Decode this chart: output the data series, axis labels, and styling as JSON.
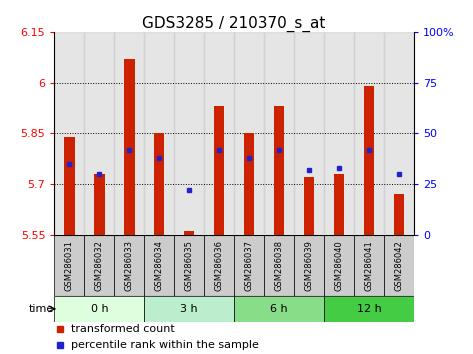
{
  "title": "GDS3285 / 210370_s_at",
  "samples": [
    "GSM286031",
    "GSM286032",
    "GSM286033",
    "GSM286034",
    "GSM286035",
    "GSM286036",
    "GSM286037",
    "GSM286038",
    "GSM286039",
    "GSM286040",
    "GSM286041",
    "GSM286042"
  ],
  "transformed_count": [
    5.84,
    5.73,
    6.07,
    5.85,
    5.56,
    5.93,
    5.85,
    5.93,
    5.72,
    5.73,
    5.99,
    5.67
  ],
  "percentile_rank": [
    35,
    30,
    42,
    38,
    22,
    42,
    38,
    42,
    32,
    33,
    42,
    30
  ],
  "ylim_left": [
    5.55,
    6.15
  ],
  "ylim_right": [
    0,
    100
  ],
  "yticks_left": [
    5.55,
    5.7,
    5.85,
    6.0,
    6.15
  ],
  "yticks_right": [
    0,
    25,
    50,
    75,
    100
  ],
  "ytick_labels_left": [
    "5.55",
    "5.7",
    "5.85",
    "6",
    "6.15"
  ],
  "ytick_labels_right": [
    "0",
    "25",
    "50",
    "75",
    "100%"
  ],
  "grid_yticks": [
    5.7,
    5.85,
    6.0
  ],
  "bar_color": "#cc2200",
  "dot_color": "#2222cc",
  "bar_bottom": 5.55,
  "group_colors": [
    "#ddffdd",
    "#bbeecc",
    "#88dd88",
    "#44cc44"
  ],
  "group_labels": [
    "0 h",
    "3 h",
    "6 h",
    "12 h"
  ],
  "group_starts": [
    0,
    3,
    6,
    9
  ],
  "group_ends": [
    3,
    6,
    9,
    12
  ],
  "time_label": "time",
  "legend_bar_label": "transformed count",
  "legend_dot_label": "percentile rank within the sample",
  "background_color": "#ffffff",
  "sample_bg_color": "#cccccc",
  "title_fontsize": 11,
  "tick_fontsize": 8,
  "legend_fontsize": 8
}
